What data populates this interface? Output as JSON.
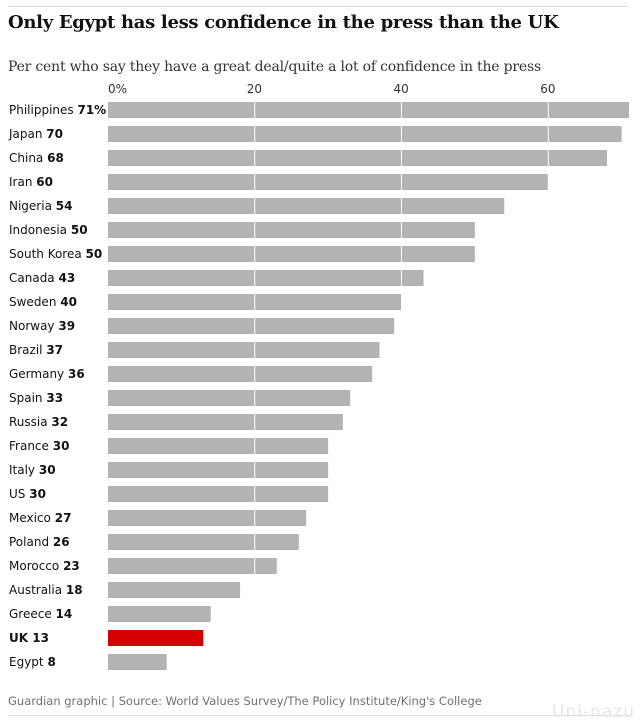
{
  "title": "Only Egypt has less confidence in the press than the UK",
  "subtitle": "Per cent who say they have a great deal/quite a lot of confidence in the press",
  "source": "Guardian graphic | Source: World Values Survey/The Policy Institute/King's College",
  "watermark": "Uni-nazu",
  "colors": {
    "bar": "#b3b3b3",
    "highlight": "#d70000",
    "grid": "#ffffff",
    "text": "#121212"
  },
  "chart_data": {
    "type": "bar",
    "orientation": "horizontal",
    "xlim": [
      0,
      71
    ],
    "ticks": [
      {
        "value": 0,
        "label": "0%"
      },
      {
        "value": 20,
        "label": "20"
      },
      {
        "value": 40,
        "label": "40"
      },
      {
        "value": 60,
        "label": "60"
      }
    ],
    "categories": [
      "Philippines",
      "Japan",
      "China",
      "Iran",
      "Nigeria",
      "Indonesia",
      "South Korea",
      "Canada",
      "Sweden",
      "Norway",
      "Brazil",
      "Germany",
      "Spain",
      "Russia",
      "France",
      "Italy",
      "US",
      "Mexico",
      "Poland",
      "Morocco",
      "Australia",
      "Greece",
      "UK",
      "Egypt"
    ],
    "values": [
      71,
      70,
      68,
      60,
      54,
      50,
      50,
      43,
      40,
      39,
      37,
      36,
      33,
      32,
      30,
      30,
      30,
      27,
      26,
      23,
      18,
      14,
      13,
      8
    ],
    "value_labels": [
      "71%",
      "70",
      "68",
      "60",
      "54",
      "50",
      "50",
      "43",
      "40",
      "39",
      "37",
      "36",
      "33",
      "32",
      "30",
      "30",
      "30",
      "27",
      "26",
      "23",
      "18",
      "14",
      "13",
      "8"
    ],
    "highlight": "UK",
    "grid": true
  }
}
